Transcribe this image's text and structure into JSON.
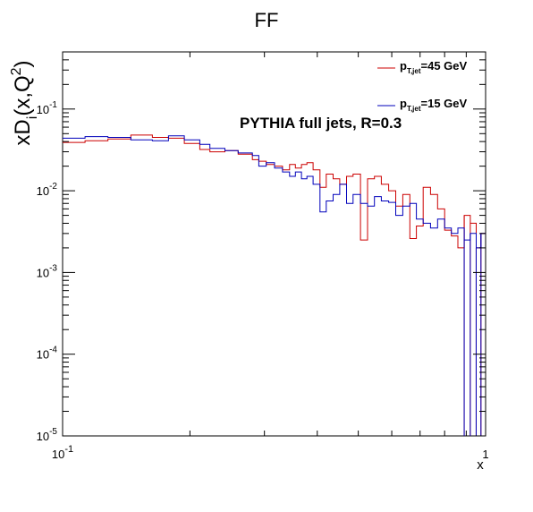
{
  "chart_data": {
    "type": "line",
    "title": "FF",
    "xlabel": "x",
    "ylabel": "xD_i(x,Q^2)",
    "x_scale": "log",
    "y_scale": "log",
    "xlim": [
      0.1,
      1
    ],
    "ylim": [
      1e-05,
      0.5
    ],
    "grid": false,
    "legend_position": "top-right",
    "annotation": "PYTHIA full jets, R=0.3",
    "x_ticks": [
      {
        "pos": 0.1,
        "label": "10",
        "exp": "-1"
      },
      {
        "pos": 1,
        "label": "1",
        "exp": ""
      }
    ],
    "y_ticks": [
      {
        "pos": 1e-05,
        "label": "10",
        "exp": "-5"
      },
      {
        "pos": 0.0001,
        "label": "10",
        "exp": "-4"
      },
      {
        "pos": 0.001,
        "label": "10",
        "exp": "-3"
      },
      {
        "pos": 0.01,
        "label": "10",
        "exp": "-2"
      },
      {
        "pos": 0.1,
        "label": "10",
        "exp": "-1"
      }
    ],
    "bin_edges": [
      0.1,
      0.113,
      0.128,
      0.145,
      0.163,
      0.178,
      0.194,
      0.211,
      0.223,
      0.242,
      0.26,
      0.281,
      0.291,
      0.303,
      0.317,
      0.331,
      0.344,
      0.355,
      0.367,
      0.378,
      0.391,
      0.406,
      0.42,
      0.436,
      0.452,
      0.469,
      0.486,
      0.506,
      0.526,
      0.546,
      0.567,
      0.59,
      0.613,
      0.637,
      0.662,
      0.686,
      0.712,
      0.741,
      0.77,
      0.8,
      0.83,
      0.86,
      0.89,
      0.92,
      0.95,
      0.975,
      1.0
    ],
    "series": [
      {
        "name": "p_T,jet=45 GeV",
        "color": "#cc0000",
        "values": [
          0.039,
          0.041,
          0.043,
          0.048,
          0.045,
          0.044,
          0.038,
          0.032,
          0.03,
          0.031,
          0.028,
          0.024,
          0.023,
          0.021,
          0.02,
          0.018,
          0.021,
          0.019,
          0.021,
          0.022,
          0.018,
          0.011,
          0.016,
          0.014,
          0.012,
          0.015,
          0.016,
          0.0025,
          0.014,
          0.015,
          0.012,
          0.01,
          0.0065,
          0.009,
          0.0026,
          0.0037,
          0.011,
          0.009,
          0.006,
          0.0033,
          0.0028,
          0.002,
          0.005,
          0.004,
          0.002,
          0.003
        ]
      },
      {
        "name": "p_T,jet=15 GeV",
        "color": "#0000bb",
        "values": [
          0.044,
          0.046,
          0.045,
          0.042,
          0.041,
          0.047,
          0.042,
          0.037,
          0.033,
          0.031,
          0.029,
          0.027,
          0.02,
          0.022,
          0.019,
          0.017,
          0.015,
          0.017,
          0.014,
          0.015,
          0.012,
          0.0055,
          0.0075,
          0.009,
          0.012,
          0.007,
          0.009,
          0.007,
          0.0065,
          0.0085,
          0.0075,
          0.0072,
          0.005,
          0.0065,
          0.007,
          0.0045,
          0.004,
          0.0035,
          0.0045,
          0.0035,
          0.003,
          0.0035,
          0.0025,
          0.003,
          0.002,
          0.003
        ]
      }
    ]
  }
}
